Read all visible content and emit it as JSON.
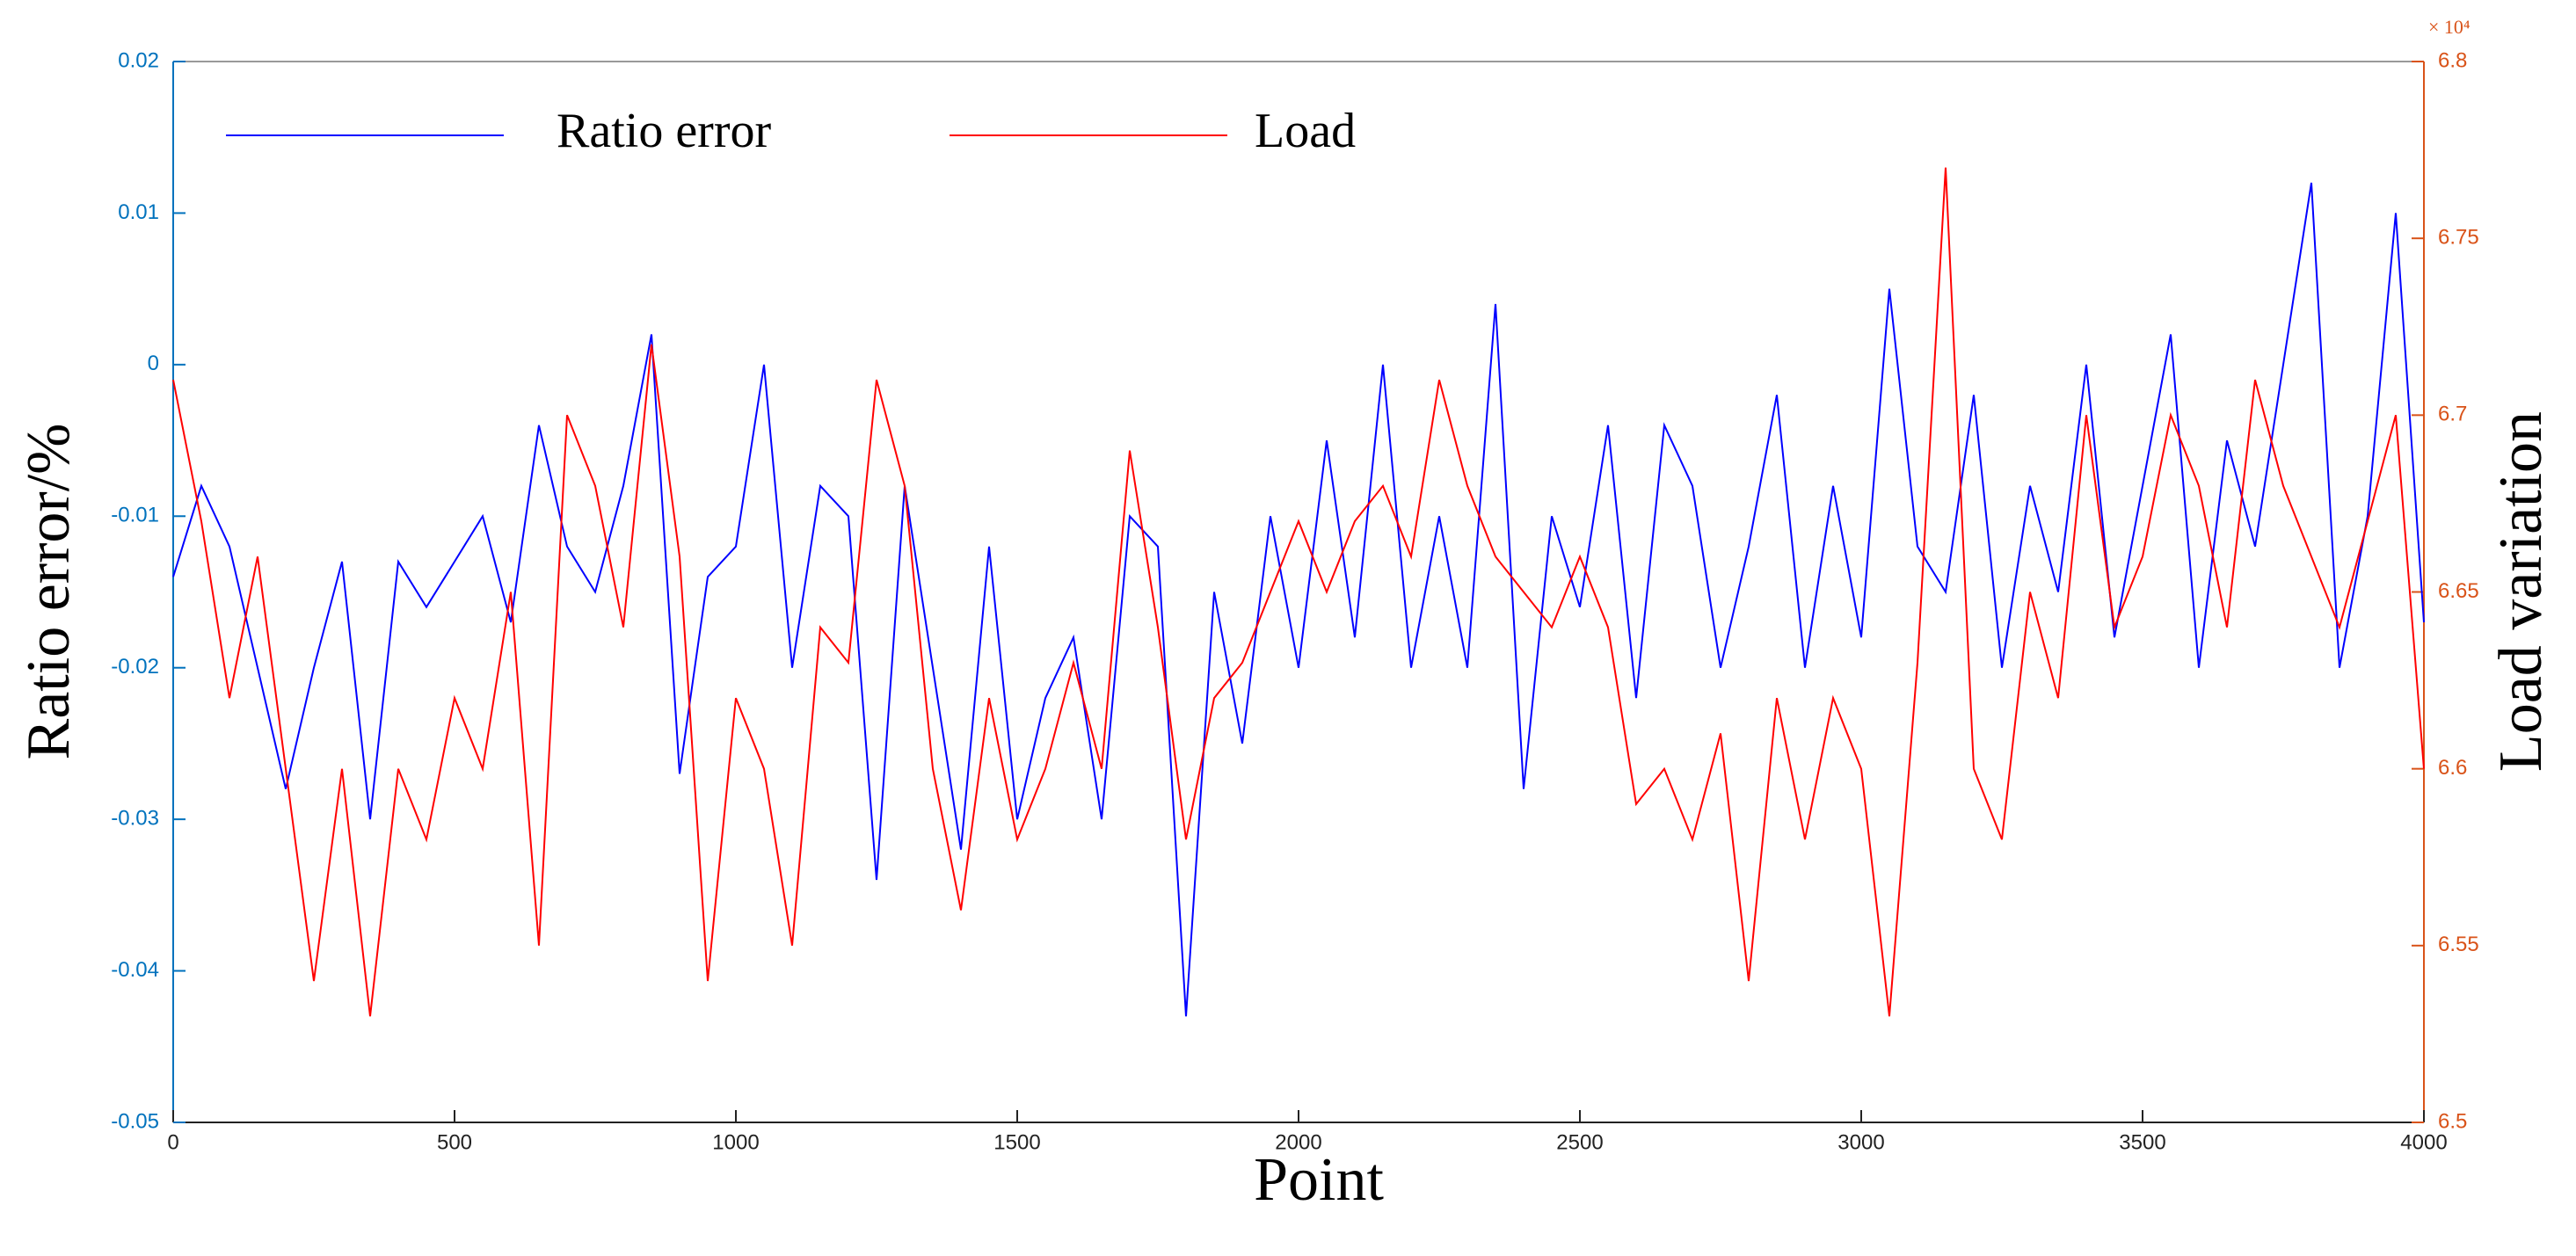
{
  "chart_data": {
    "type": "line",
    "xlabel": "Point",
    "ylabel": "Ratio error/%",
    "y2label": "Load variation",
    "y2_multiplier_label": "× 10⁴",
    "x": [
      0,
      50,
      100,
      150,
      200,
      250,
      300,
      350,
      400,
      450,
      500,
      550,
      600,
      650,
      700,
      750,
      800,
      850,
      900,
      950,
      1000,
      1050,
      1100,
      1150,
      1200,
      1250,
      1300,
      1350,
      1400,
      1450,
      1500,
      1550,
      1600,
      1650,
      1700,
      1750,
      1800,
      1850,
      1900,
      1950,
      2000,
      2050,
      2100,
      2150,
      2200,
      2250,
      2300,
      2350,
      2400,
      2450,
      2500,
      2550,
      2600,
      2650,
      2700,
      2750,
      2800,
      2850,
      2900,
      2950,
      3000,
      3050,
      3100,
      3150,
      3200,
      3250,
      3300,
      3350,
      3400,
      3450,
      3500,
      3550,
      3600,
      3650,
      3700,
      3750,
      3800,
      3850,
      3900,
      3950,
      4000
    ],
    "series": [
      {
        "name": "Ratio error",
        "color": "#0000ff",
        "axis": "y",
        "values": [
          -0.014,
          -0.008,
          -0.012,
          -0.02,
          -0.028,
          -0.02,
          -0.013,
          -0.03,
          -0.013,
          -0.016,
          -0.013,
          -0.01,
          -0.017,
          -0.004,
          -0.012,
          -0.015,
          -0.008,
          0.002,
          -0.027,
          -0.014,
          -0.012,
          0.0,
          -0.02,
          -0.008,
          -0.01,
          -0.034,
          -0.008,
          -0.02,
          -0.032,
          -0.012,
          -0.03,
          -0.022,
          -0.018,
          -0.03,
          -0.01,
          -0.012,
          -0.043,
          -0.015,
          -0.025,
          -0.01,
          -0.02,
          -0.005,
          -0.018,
          0.0,
          -0.02,
          -0.01,
          -0.02,
          0.004,
          -0.028,
          -0.01,
          -0.016,
          -0.004,
          -0.022,
          -0.004,
          -0.008,
          -0.02,
          -0.012,
          -0.002,
          -0.02,
          -0.008,
          -0.018,
          0.005,
          -0.012,
          -0.015,
          -0.002,
          -0.02,
          -0.008,
          -0.015,
          0.0,
          -0.018,
          -0.008,
          0.002,
          -0.02,
          -0.005,
          -0.012,
          0.0,
          0.012,
          -0.02,
          -0.01,
          0.01,
          -0.017
        ]
      },
      {
        "name": "Load",
        "color": "#ff0000",
        "axis": "y2",
        "values": [
          67100,
          66700,
          66200,
          66600,
          66000,
          65400,
          66000,
          65300,
          66000,
          65800,
          66200,
          66000,
          66500,
          65500,
          67000,
          66800,
          66400,
          67200,
          66600,
          65400,
          66200,
          66000,
          65500,
          66400,
          66300,
          67100,
          66800,
          66000,
          65600,
          66200,
          65800,
          66000,
          66300,
          66000,
          66900,
          66400,
          65800,
          66200,
          66300,
          66500,
          66700,
          66500,
          66700,
          66800,
          66600,
          67100,
          66800,
          66600,
          66500,
          66400,
          66600,
          66400,
          65900,
          66000,
          65800,
          66100,
          65400,
          66200,
          65800,
          66200,
          66000,
          65300,
          66300,
          67700,
          66000,
          65800,
          66500,
          66200,
          67000,
          66400,
          66600,
          67000,
          66800,
          66400,
          67100,
          66800,
          66600,
          66400,
          66700,
          67000,
          66000
        ]
      }
    ],
    "xlim": [
      0,
      4000
    ],
    "xticks": [
      0,
      500,
      1000,
      1500,
      2000,
      2500,
      3000,
      3500,
      4000
    ],
    "ylim": [
      -0.05,
      0.02
    ],
    "yticks": [
      -0.05,
      -0.04,
      -0.03,
      -0.02,
      -0.01,
      0,
      0.01,
      0.02
    ],
    "y2lim": [
      65000,
      68000
    ],
    "y2ticks": [
      {
        "value": 65000,
        "label": "6.5"
      },
      {
        "value": 65500,
        "label": "6.55"
      },
      {
        "value": 66000,
        "label": "6.6"
      },
      {
        "value": 66500,
        "label": "6.65"
      },
      {
        "value": 67000,
        "label": "6.7"
      },
      {
        "value": 67500,
        "label": "6.75"
      },
      {
        "value": 68000,
        "label": "6.8"
      }
    ],
    "legend": "upper left",
    "y_axis_color": "#0072bd",
    "y2_axis_color": "#d95319"
  }
}
